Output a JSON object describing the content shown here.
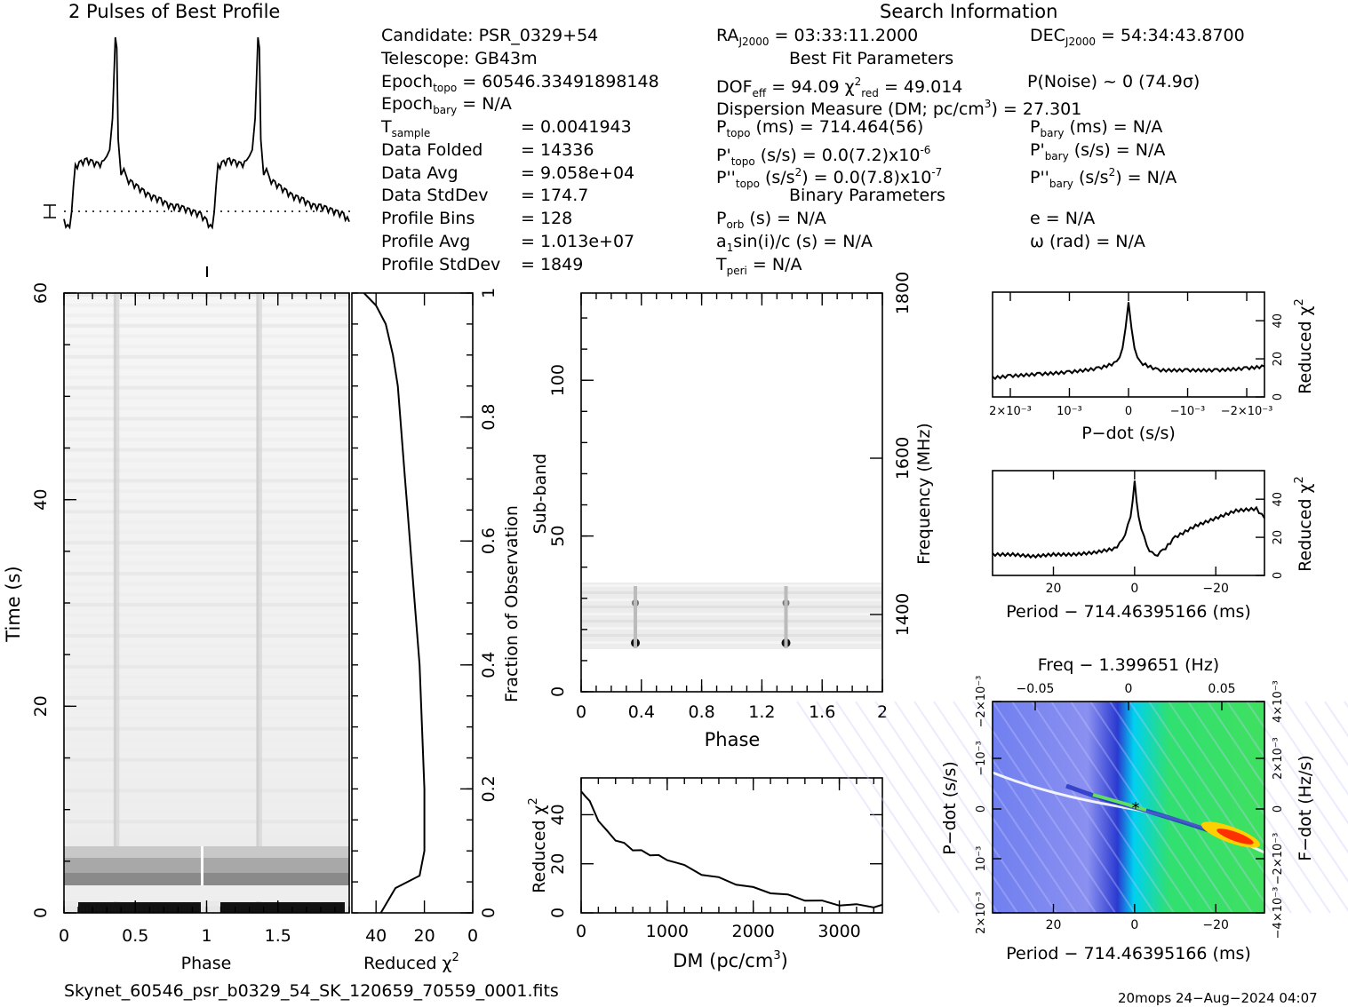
{
  "header": {
    "profile_title": "2 Pulses of Best Profile",
    "search_title": "Search Information",
    "best_fit_title": "Best Fit Parameters",
    "binary_title": "Binary Parameters"
  },
  "info": {
    "candidate": "Candidate:  PSR_0329+54",
    "telescope": "Telescope:  GB43m",
    "epoch_topo_label": "Epoch",
    "epoch_topo_sub": "topo",
    "epoch_topo_value": " = 60546.33491898148",
    "epoch_bary_label": "Epoch",
    "epoch_bary_sub": "bary",
    "epoch_bary_value": " = N/A",
    "rows": [
      {
        "label": "T",
        "sub": "sample",
        "value": "=  0.0041943"
      },
      {
        "label": "Data Folded",
        "sub": "",
        "value": "=  14336"
      },
      {
        "label": "Data Avg",
        "sub": "",
        "value": "=  9.058e+04"
      },
      {
        "label": "Data StdDev",
        "sub": "",
        "value": "=  174.7"
      },
      {
        "label": "Profile Bins",
        "sub": "",
        "value": "=  128"
      },
      {
        "label": "Profile Avg",
        "sub": "",
        "value": "=  1.013e+07"
      },
      {
        "label": "Profile StdDev",
        "sub": "",
        "value": "=  1849"
      }
    ]
  },
  "search": {
    "ra": "RA",
    "ra_sub": "J2000",
    "ra_value": " = 03:33:11.2000",
    "dec": "DEC",
    "dec_sub": "J2000",
    "dec_value": " = 54:34:43.8700",
    "dof": "DOF",
    "dof_sub": "eff",
    "dof_value": " = 94.09  χ",
    "chi_sup": "2",
    "chi_sub": "red",
    "chi_value": " = 49.014",
    "p_noise": "P(Noise) ~ 0   (74.9σ)",
    "dm_a": "Dispersion Measure (DM; pc/cm",
    "dm_sup": "3",
    "dm_b": ") = 27.301",
    "ptopo": "P",
    "ptopo_sub": "topo",
    "ptopo_value": " (ms) =  714.464(56)",
    "pbary": "P",
    "pbary_sub": "bary",
    "pbary_value": " (ms) = N/A",
    "pdtopo": "P'",
    "pdtopo_sub": "topo",
    "pdtopo_value": " (s/s) = 0.0(7.2)x10",
    "pdtopo_sup": "-6",
    "pdbary": "P'",
    "pdbary_sub": "bary",
    "pdbary_value": " (s/s) = N/A",
    "pddtopo": "P''",
    "pddtopo_sub": "topo",
    "pddtopo_value_a": " (s/s",
    "pddtopo_sup1": "2",
    "pddtopo_value_b": ") = 0.0(7.8)x10",
    "pddtopo_sup2": "-7",
    "pddbary": "P''",
    "pddbary_sub": "bary",
    "pddbary_value_a": " (s/s",
    "pddbary_sup": "2",
    "pddbary_value_b": ") = N/A",
    "porb": "P",
    "porb_sub": "orb",
    "porb_value": " (s) = N/A",
    "ecc": "e = N/A",
    "asini": "a",
    "asini_sub": "1",
    "asini_value": "sin(i)/c (s) = N/A",
    "omega": "ω (rad) = N/A",
    "tperi": "T",
    "tperi_sub": "peri",
    "tperi_value": " = N/A"
  },
  "footer": {
    "filename": "Skynet_60546_psr_b0329_54_SK_120659_70559_0001.fits",
    "stamp": "20mops 24−Aug−2024 04:07"
  },
  "chart_data": [
    {
      "type": "line",
      "name": "profile",
      "title": "2 Pulses of Best Profile",
      "x": [
        0,
        0.04,
        0.08,
        0.12,
        0.16,
        0.2,
        0.24,
        0.28,
        0.3,
        0.32,
        0.34,
        0.36,
        0.37,
        0.38,
        0.4,
        0.42,
        0.44,
        0.48,
        0.52,
        0.56,
        0.6,
        0.64,
        0.68,
        0.72,
        0.76,
        0.8,
        0.84,
        0.88,
        0.92,
        0.96,
        1.0
      ],
      "y": [
        0.12,
        0.08,
        0.38,
        0.4,
        0.41,
        0.4,
        0.39,
        0.4,
        0.42,
        0.45,
        0.6,
        1.0,
        0.95,
        0.5,
        0.33,
        0.36,
        0.32,
        0.3,
        0.28,
        0.26,
        0.24,
        0.23,
        0.22,
        0.2,
        0.19,
        0.19,
        0.18,
        0.17,
        0.16,
        0.15,
        0.12
      ]
    },
    {
      "type": "heatmap",
      "name": "time-phase",
      "xlabel": "Phase",
      "ylabel": "Time (s)",
      "xticks": [
        "0",
        "0.5",
        "1",
        "1.5"
      ],
      "yticks": [
        "0",
        "20",
        "40",
        "60"
      ],
      "xlim": [
        0,
        2
      ],
      "ylim": [
        0,
        60
      ]
    },
    {
      "type": "line",
      "name": "chi-vs-fraction",
      "xlabel": "Reduced χ",
      "ylabel": "Fraction of Observation",
      "xticks": [
        "40",
        "20",
        "0"
      ],
      "yticks": [
        "0",
        "0.2",
        "0.4",
        "0.6",
        "0.8",
        "1"
      ],
      "x": [
        38,
        32,
        22,
        20,
        20,
        21,
        22,
        24,
        26,
        27,
        28,
        29,
        30,
        31,
        33,
        36,
        40,
        45
      ],
      "y": [
        0,
        0.04,
        0.06,
        0.1,
        0.2,
        0.3,
        0.4,
        0.5,
        0.6,
        0.65,
        0.7,
        0.75,
        0.8,
        0.85,
        0.9,
        0.95,
        0.98,
        1.0
      ]
    },
    {
      "type": "heatmap",
      "name": "subband-phase",
      "xlabel": "Phase",
      "ylabel": "Sub-band",
      "y2label": "Frequency (MHz)",
      "xticks": [
        "0",
        "0.4",
        "0.8",
        "1.2",
        "1.6",
        "2"
      ],
      "yticks": [
        "0",
        "50",
        "100"
      ],
      "y2ticks": [
        "1400",
        "1600",
        "1800"
      ],
      "xlim": [
        0,
        2
      ],
      "ylim": [
        0,
        128
      ]
    },
    {
      "type": "line",
      "name": "dm-curve",
      "xlabel": "DM (pc/cm",
      "xlabel_sup": "3",
      "xlabel_end": ")",
      "ylabel": "Reduced χ",
      "xticks": [
        "0",
        "1000",
        "2000",
        "3000"
      ],
      "yticks": [
        "20",
        "40"
      ],
      "xlim": [
        0,
        3500
      ],
      "ylim": [
        0,
        55
      ],
      "x": [
        0,
        50,
        100,
        200,
        300,
        400,
        500,
        600,
        700,
        800,
        900,
        1000,
        1200,
        1400,
        1600,
        1800,
        2000,
        2200,
        2400,
        2600,
        2800,
        3000,
        3200,
        3400,
        3500
      ],
      "y": [
        49,
        48,
        45,
        38,
        33,
        30,
        28,
        26,
        25,
        24,
        23,
        22,
        19,
        16,
        14,
        12,
        10,
        8.5,
        7,
        5.5,
        4.5,
        3.5,
        3,
        2.8,
        2.8
      ]
    },
    {
      "type": "line",
      "name": "pdot-curve",
      "xlabel": "P−dot (s/s)",
      "ylabel": "Reduced χ",
      "xticks": [
        "2×10⁻³",
        "10⁻³",
        "0",
        "−10⁻³",
        "−2×10⁻³"
      ],
      "yticks": [
        "0",
        "20",
        "40"
      ],
      "xlim": [
        0.0023,
        -0.0023
      ],
      "ylim": [
        0,
        55
      ],
      "x": [
        0.0023,
        0.002,
        0.0015,
        0.001,
        0.0005,
        0.0002,
        0.0001,
        0,
        -0.0001,
        -0.0002,
        -0.0005,
        -0.001,
        -0.0015,
        -0.002,
        -0.0023
      ],
      "y": [
        10,
        11,
        12,
        13,
        15,
        18,
        25,
        49,
        25,
        18,
        14,
        14,
        14,
        15,
        16
      ]
    },
    {
      "type": "line",
      "name": "period-curve",
      "xlabel": "Period − 714.46395166 (ms)",
      "ylabel": "Reduced χ",
      "xticks": [
        "20",
        "0",
        "−20"
      ],
      "yticks": [
        "0",
        "20",
        "40"
      ],
      "xlim": [
        35,
        -32
      ],
      "ylim": [
        0,
        55
      ],
      "x": [
        35,
        30,
        25,
        20,
        15,
        10,
        5,
        3,
        1,
        0,
        -1,
        -3,
        -5,
        -7,
        -10,
        -15,
        -20,
        -25,
        -30,
        -32
      ],
      "y": [
        11,
        11,
        10,
        11,
        11,
        12,
        14,
        18,
        30,
        49,
        30,
        15,
        10,
        13,
        20,
        26,
        30,
        34,
        35,
        30
      ]
    },
    {
      "type": "heatmap",
      "name": "pdot-period",
      "title": "Freq − 1.399651 (Hz)",
      "xlabel": "Period − 714.46395166 (ms)",
      "ylabel": "P−dot (s/s)",
      "y2label": "F−dot (Hz/s)",
      "xticks": [
        "20",
        "0",
        "−20"
      ],
      "x2ticks": [
        "−0.05",
        "0",
        "0.05"
      ],
      "yticks": [
        "2×10⁻³",
        "10⁻³",
        "0",
        "−10⁻³",
        "−2×10⁻³"
      ],
      "y2ticks": [
        "−4×10⁻³",
        "−2×10⁻³",
        "0",
        "2×10⁻³",
        "4×10⁻³"
      ]
    }
  ]
}
